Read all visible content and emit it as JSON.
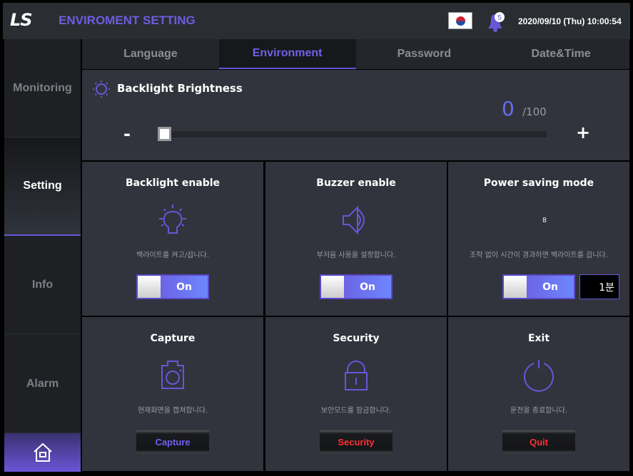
{
  "header": {
    "logo": "LS",
    "title": "ENVIROMENT SETTING",
    "notification_count": "5",
    "datetime": "2020/09/10 (Thu) 10:00:54",
    "flag": "korea-flag-icon"
  },
  "sidebar": {
    "items": [
      {
        "label": "Monitoring"
      },
      {
        "label": "Setting",
        "active": true
      },
      {
        "label": "Info"
      },
      {
        "label": "Alarm"
      }
    ],
    "home_icon": "home-icon"
  },
  "tabs": [
    {
      "label": "Language"
    },
    {
      "label": "Environment",
      "active": true
    },
    {
      "label": "Password"
    },
    {
      "label": "Date&Time"
    }
  ],
  "brightness": {
    "title": "Backlight Brightness",
    "value": "0",
    "max": "/100",
    "minus": "-",
    "plus": "+",
    "level_percent": 0
  },
  "cards": {
    "backlight": {
      "title": "Backlight enable",
      "desc": "백라이트를 켜고/끕니다.",
      "toggle": "On"
    },
    "buzzer": {
      "title": "Buzzer enable",
      "desc": "부저음 사용을 설정합니다.",
      "toggle": "On"
    },
    "power": {
      "title": "Power saving mode",
      "desc": "조작 없이 시간이 경과하면 백라이트를 끕니다.",
      "toggle": "On",
      "moon_label": "8",
      "timeout": "1분"
    },
    "capture": {
      "title": "Capture",
      "desc": "현재화면을 캡쳐합니다.",
      "button": "Capture"
    },
    "security": {
      "title": "Security",
      "desc": "보안모드를 잠금합니다.",
      "button": "Security"
    },
    "exit": {
      "title": "Exit",
      "desc": "운전을 종료합니다.",
      "button": "Quit"
    }
  },
  "colors": {
    "accent": "#6a55d8",
    "danger": "#ff3030",
    "capture_text": "#7060f0"
  }
}
